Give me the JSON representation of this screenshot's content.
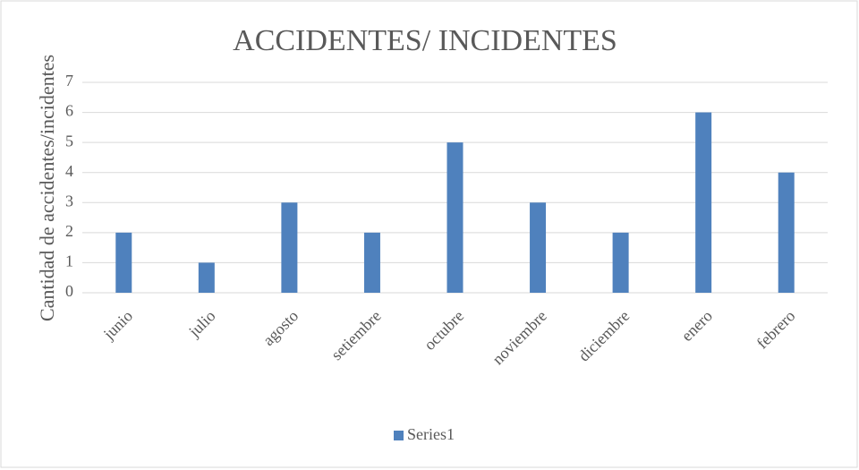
{
  "chart_data": {
    "type": "bar",
    "title": "ACCIDENTES/ INCIDENTES",
    "y_label": "Cantidad de accidentes/incidentes",
    "categories": [
      "junio",
      "julio",
      "agosto",
      "setiembre",
      "octubre",
      "noviembre",
      "diciembre",
      "enero",
      "febrero"
    ],
    "series": [
      {
        "name": "Series1",
        "color": "#4f81bd",
        "values": [
          2,
          1,
          3,
          2,
          5,
          3,
          2,
          6,
          4
        ]
      }
    ],
    "ylim": [
      0,
      7
    ],
    "yticks": [
      0,
      1,
      2,
      3,
      4,
      5,
      6,
      7
    ],
    "grid": true,
    "legend": "bottom"
  }
}
